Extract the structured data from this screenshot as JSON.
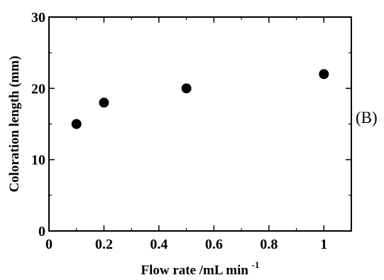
{
  "chart_data": {
    "type": "scatter",
    "title": "",
    "xlabel": "Flow rate /mL min",
    "xlabel_superscript": "-1",
    "ylabel": "Coloration length (mm)",
    "panel_label": "(B)",
    "xlim": [
      0,
      1.1
    ],
    "ylim": [
      0,
      30
    ],
    "x_ticks": [
      0,
      0.2,
      0.4,
      0.6,
      0.8,
      1
    ],
    "x_tick_labels": [
      "0",
      "0.2",
      "0.4",
      "0.6",
      "0.8",
      "1"
    ],
    "y_ticks": [
      0,
      10,
      20,
      30
    ],
    "y_tick_labels": [
      "0",
      "10",
      "20",
      "30"
    ],
    "grid": false,
    "legend": "none",
    "marker_color": "#000000",
    "series": [
      {
        "x": [
          0.1,
          0.2,
          0.5,
          1.0
        ],
        "y": [
          15,
          18,
          20,
          22
        ]
      }
    ]
  }
}
